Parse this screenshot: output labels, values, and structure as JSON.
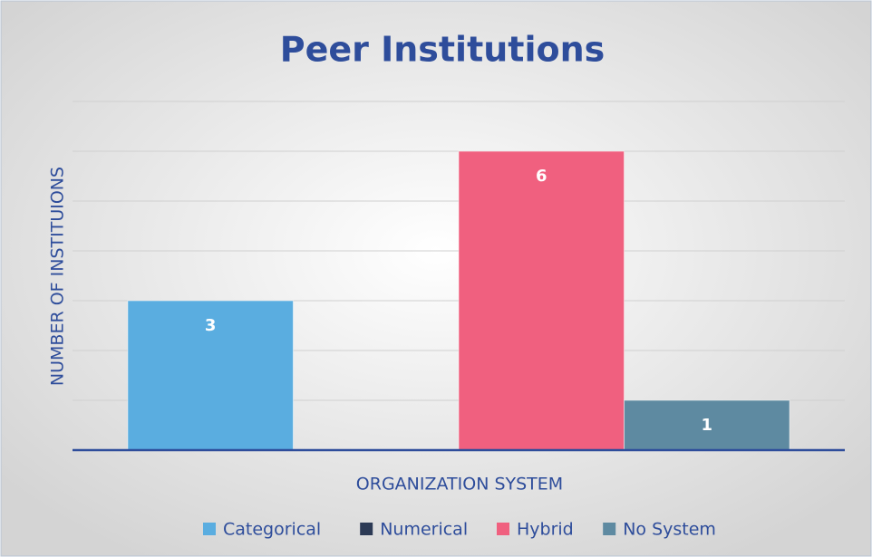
{
  "chart_data": {
    "type": "bar",
    "title": "Peer Institutions",
    "x_label": "ORGANIZATION SYSTEM",
    "y_label": "NUMBER OF INSTITUIONS",
    "categories": [
      null
    ],
    "series": [
      {
        "name": "Categorical",
        "color": "#5aade0",
        "values": [
          3
        ]
      },
      {
        "name": "Numerical",
        "color": "#2c3a55",
        "values": [
          0
        ]
      },
      {
        "name": "Hybrid",
        "color": "#f0607f",
        "values": [
          6
        ]
      },
      {
        "name": "No System",
        "color": "#5e8aa1",
        "values": [
          1
        ]
      }
    ],
    "ylim": [
      0,
      7
    ],
    "yticks": [
      1,
      2,
      3,
      4,
      5,
      6,
      7
    ],
    "grid": true,
    "legend": "bottom"
  }
}
